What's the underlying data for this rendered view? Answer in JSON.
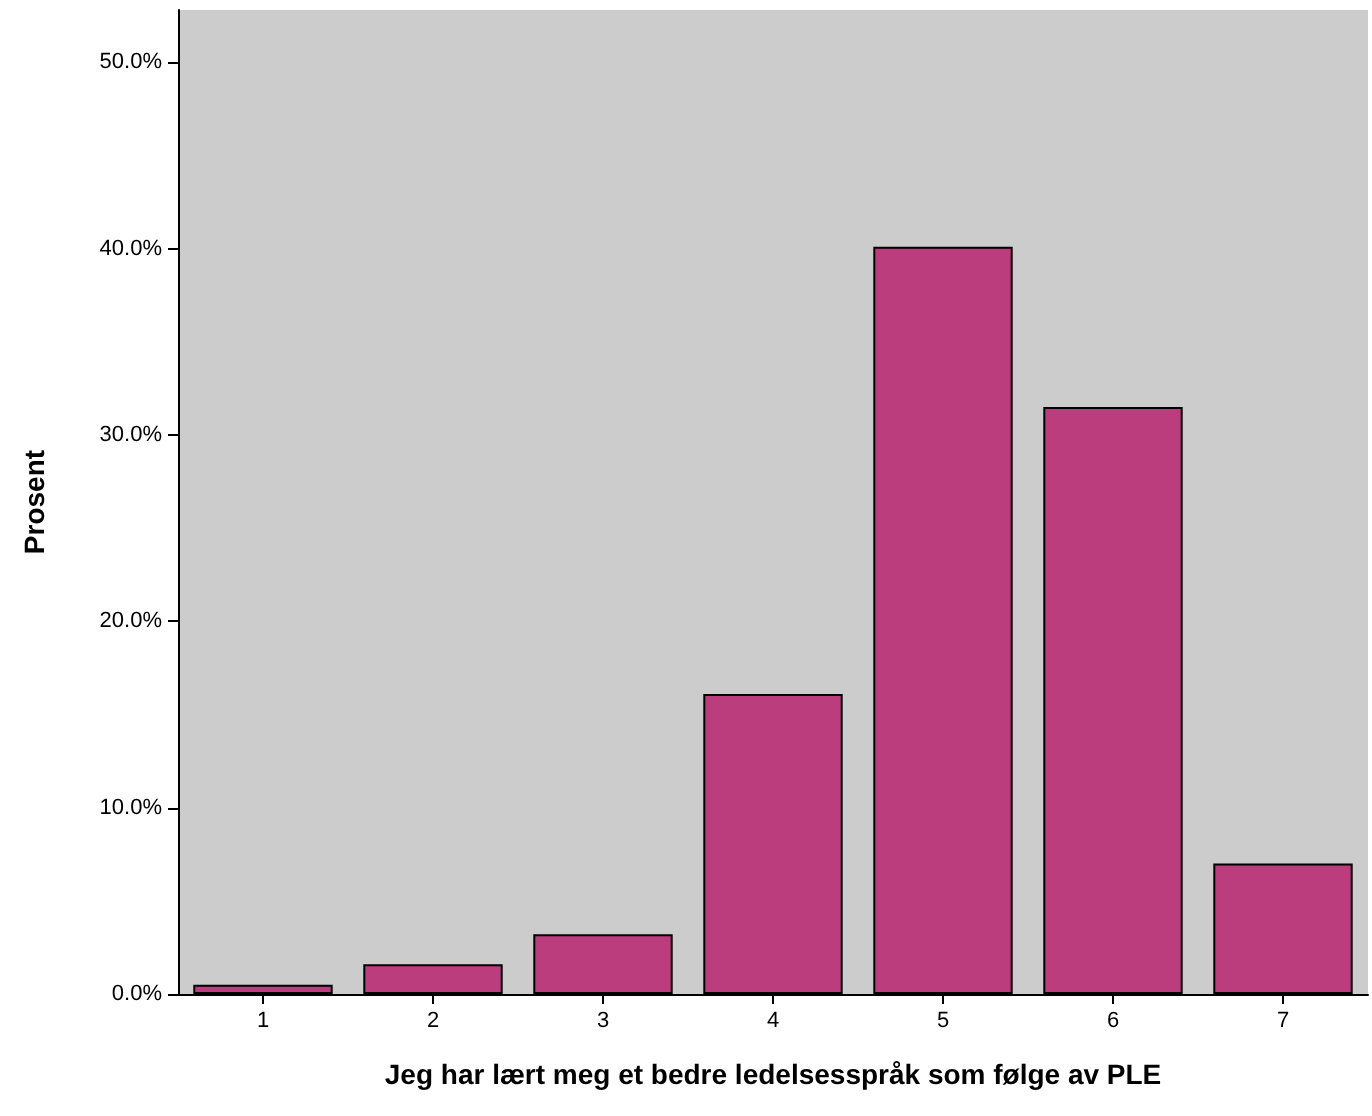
{
  "chart_data": {
    "type": "bar",
    "xlabel": "Jeg har lært meg et bedre ledelsesspråk som følge av PLE",
    "ylabel": "Prosent",
    "categories": [
      "1",
      "2",
      "3",
      "4",
      "5",
      "6",
      "7"
    ],
    "values": [
      0.5,
      1.6,
      3.2,
      16.1,
      40.1,
      31.5,
      7.0
    ],
    "color": "#bb3d7d",
    "ylim": [
      0,
      52.8
    ],
    "yticks": [
      {
        "value": 0,
        "label": "0.0%"
      },
      {
        "value": 10,
        "label": "10.0%"
      },
      {
        "value": 20,
        "label": "20.0%"
      },
      {
        "value": 30,
        "label": "30.0%"
      },
      {
        "value": 40,
        "label": "40.0%"
      },
      {
        "value": 50,
        "label": "50.0%"
      }
    ],
    "grid": false
  }
}
